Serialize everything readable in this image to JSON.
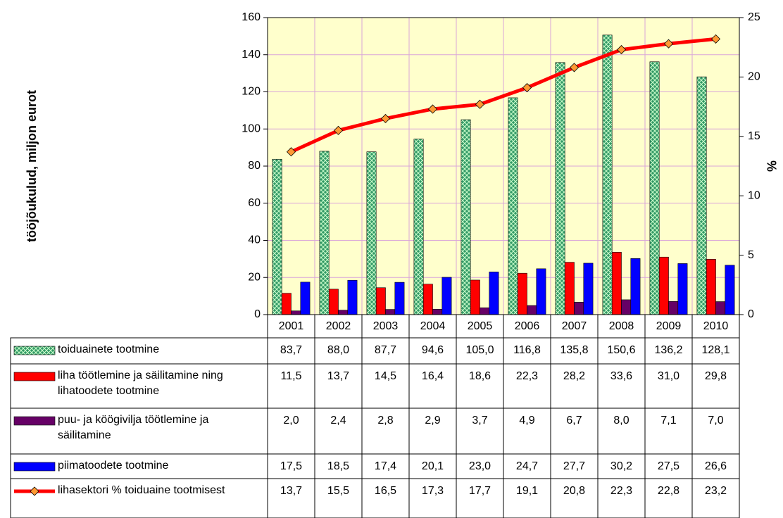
{
  "chart_data": {
    "type": "bar",
    "y_label": "tööjõukulud, miljon eurot",
    "y2_label": "%",
    "categories": [
      "2001",
      "2002",
      "2003",
      "2004",
      "2005",
      "2006",
      "2007",
      "2008",
      "2009",
      "2010"
    ],
    "ylim": [
      0,
      160
    ],
    "yticks": [
      0,
      20,
      40,
      60,
      80,
      100,
      120,
      140,
      160
    ],
    "y2lim": [
      0,
      25
    ],
    "y2ticks": [
      0,
      5,
      10,
      15,
      20,
      25
    ],
    "grid": true,
    "background": "#ffffcc",
    "grid_color": "#d9a6d9",
    "series": [
      {
        "name": "toiduainete tootmine",
        "type": "bar",
        "color": "#339966",
        "values": [
          83.7,
          88.0,
          87.7,
          94.6,
          105.0,
          116.8,
          135.8,
          150.6,
          136.2,
          128.1
        ],
        "value_labels": [
          "83,7",
          "88,0",
          "87,7",
          "94,6",
          "105,0",
          "116,8",
          "135,8",
          "150,6",
          "136,2",
          "128,1"
        ]
      },
      {
        "name": "liha töötlemine ja säilitamine ning lihatoodete tootmine",
        "type": "bar",
        "color": "#ff0000",
        "values": [
          11.5,
          13.7,
          14.5,
          16.4,
          18.6,
          22.3,
          28.2,
          33.6,
          31.0,
          29.8
        ],
        "value_labels": [
          "11,5",
          "13,7",
          "14,5",
          "16,4",
          "18,6",
          "22,3",
          "28,2",
          "33,6",
          "31,0",
          "29,8"
        ]
      },
      {
        "name": "puu- ja köögivilja töötlemine ja säilitamine",
        "type": "bar",
        "color": "#660066",
        "values": [
          2.0,
          2.4,
          2.8,
          2.9,
          3.7,
          4.9,
          6.7,
          8.0,
          7.1,
          7.0
        ],
        "value_labels": [
          "2,0",
          "2,4",
          "2,8",
          "2,9",
          "3,7",
          "4,9",
          "6,7",
          "8,0",
          "7,1",
          "7,0"
        ]
      },
      {
        "name": "piimatoodete tootmine",
        "type": "bar",
        "color": "#0000ff",
        "values": [
          17.5,
          18.5,
          17.4,
          20.1,
          23.0,
          24.7,
          27.7,
          30.2,
          27.5,
          26.6
        ],
        "value_labels": [
          "17,5",
          "18,5",
          "17,4",
          "20,1",
          "23,0",
          "24,7",
          "27,7",
          "30,2",
          "27,5",
          "26,6"
        ]
      },
      {
        "name": "lihasektori % toiduaine tootmisest",
        "type": "line",
        "axis": "y2",
        "color": "#ff0000",
        "marker_color": "#ff9933",
        "values": [
          13.7,
          15.5,
          16.5,
          17.3,
          17.7,
          19.1,
          20.8,
          22.3,
          22.8,
          23.2
        ],
        "value_labels": [
          "13,7",
          "15,5",
          "16,5",
          "17,3",
          "17,7",
          "19,1",
          "20,8",
          "22,3",
          "22,8",
          "23,2"
        ]
      }
    ]
  }
}
